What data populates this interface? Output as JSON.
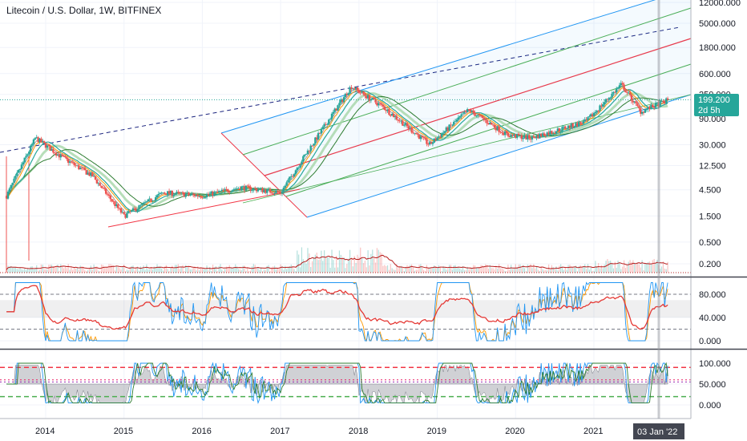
{
  "header": {
    "title": "Litecoin / U.S. Dollar, 1W, BITFINEX"
  },
  "price_badge": {
    "value": "199.200",
    "countdown": "2d 5h",
    "color": "#26a69a"
  },
  "crosshair_date": "03 Jan '22",
  "colors": {
    "up": "#26a69a",
    "down": "#ef5350",
    "channel_blue": "#2196f3",
    "channel_green": "#4caf50",
    "channel_red": "#f23645",
    "dash_navy": "#1a237e",
    "ema_orange": "#ff9800",
    "ma_teal": "#26a69a",
    "rsi_line": "#e53935",
    "stoch_k": "#2196f3",
    "stoch_d": "#ff9800",
    "grid": "#f0f3fa"
  },
  "chart_data": [
    {
      "type": "candlestick",
      "name": "price",
      "title": "Litecoin / U.S. Dollar, 1W, BITFINEX",
      "scale": "log",
      "x_ticks": [
        "2014",
        "2015",
        "2016",
        "2017",
        "2018",
        "2019",
        "2020",
        "2021"
      ],
      "x_tick_values": [
        2014,
        2015,
        2016,
        2017,
        2018,
        2019,
        2020,
        2021
      ],
      "y_ticks": [
        "12000.000",
        "5000.000",
        "1800.000",
        "600.000",
        "250.000",
        "90.000",
        "30.000",
        "12.500",
        "4.500",
        "1.500",
        "0.500",
        "0.200"
      ],
      "y_tick_values": [
        12000,
        5000,
        1800,
        600,
        250,
        90,
        30,
        12.5,
        4.5,
        1.5,
        0.5,
        0.2
      ],
      "last_price": 199.2,
      "key_points": [
        {
          "date": 2013.5,
          "price": 3.5
        },
        {
          "date": 2013.87,
          "price": 40
        },
        {
          "date": 2014.2,
          "price": 18
        },
        {
          "date": 2014.6,
          "price": 8
        },
        {
          "date": 2015.0,
          "price": 1.5
        },
        {
          "date": 2015.5,
          "price": 4
        },
        {
          "date": 2016.0,
          "price": 3.5
        },
        {
          "date": 2016.5,
          "price": 5
        },
        {
          "date": 2017.0,
          "price": 4
        },
        {
          "date": 2017.4,
          "price": 30
        },
        {
          "date": 2017.9,
          "price": 350
        },
        {
          "date": 2018.3,
          "price": 150
        },
        {
          "date": 2018.9,
          "price": 30
        },
        {
          "date": 2019.4,
          "price": 130
        },
        {
          "date": 2019.9,
          "price": 45
        },
        {
          "date": 2020.2,
          "price": 40
        },
        {
          "date": 2020.9,
          "price": 80
        },
        {
          "date": 2021.35,
          "price": 380
        },
        {
          "date": 2021.6,
          "price": 120
        },
        {
          "date": 2021.95,
          "price": 199.2
        }
      ]
    },
    {
      "type": "line",
      "name": "rsi",
      "y_ticks": [
        "80.000",
        "40.000",
        "0.000"
      ],
      "y_tick_values": [
        80,
        40,
        0
      ],
      "levels": [
        80,
        20
      ],
      "band": [
        40,
        70
      ]
    },
    {
      "type": "line",
      "name": "stochastic",
      "y_ticks": [
        "100.000",
        "50.000",
        "0.000"
      ],
      "y_tick_values": [
        100,
        50,
        0
      ],
      "levels": [
        90,
        20
      ]
    }
  ]
}
